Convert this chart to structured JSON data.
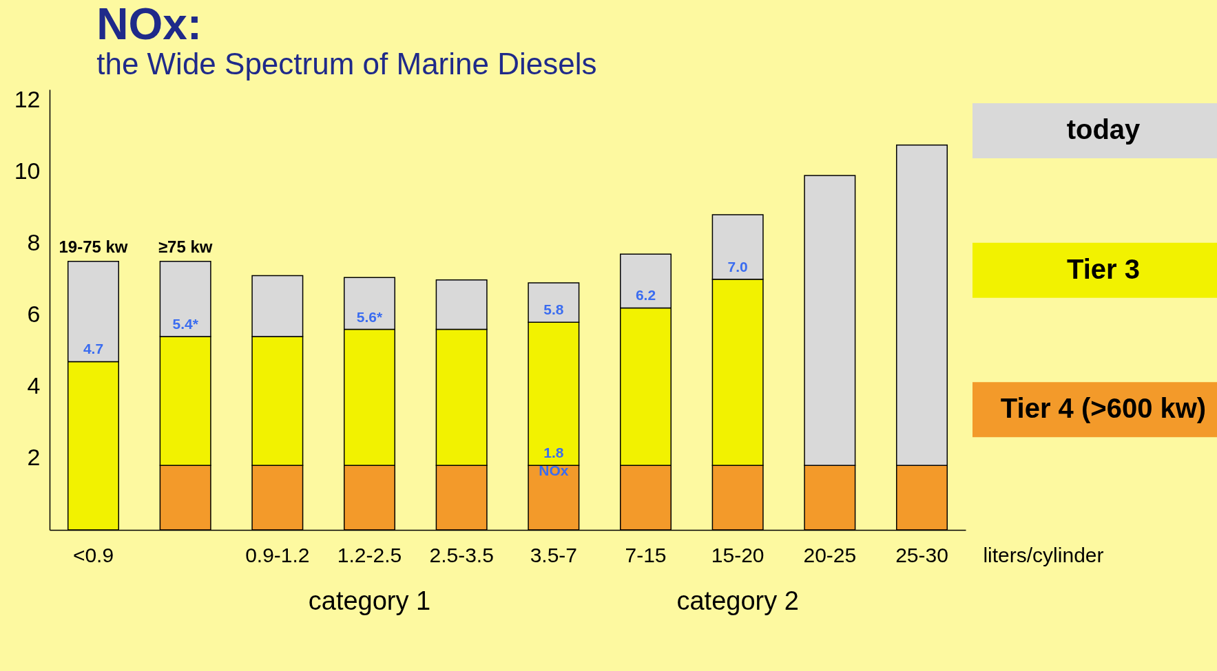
{
  "chart_data": {
    "type": "bar",
    "title": "NOx:",
    "subtitle": "the Wide Spectrum of Marine Diesels",
    "xlabel": "liters/cylinder",
    "categories": [
      "<0.9",
      null,
      "0.9-1.2",
      "1.2-2.5",
      "2.5-3.5",
      "3.5-7",
      "7-15",
      "15-20",
      "20-25",
      "25-30"
    ],
    "stacked": true,
    "series": [
      {
        "name": "Tier 4 (>600 kw)",
        "color": "#f39a2a",
        "values": [
          null,
          1.8,
          1.8,
          1.8,
          1.8,
          1.8,
          1.8,
          1.8,
          1.8,
          1.8
        ]
      },
      {
        "name": "Tier 3",
        "color": "#f2f200",
        "values": [
          4.7,
          3.6,
          3.6,
          3.8,
          3.8,
          4.0,
          4.4,
          5.2,
          null,
          null
        ]
      },
      {
        "name": "today",
        "color": "#d9d9d9",
        "values": [
          2.8,
          2.1,
          1.7,
          1.45,
          1.38,
          1.1,
          1.5,
          1.8,
          8.1,
          8.95
        ]
      }
    ],
    "ylim": [
      0,
      12.3
    ],
    "yticks": [
      2,
      4,
      6,
      8,
      10,
      12
    ],
    "legend": "right",
    "annotations": [
      "19-75 kw",
      "≥75 kw",
      "5.4*",
      "category 1",
      "category 2",
      {
        "text": "4.7",
        "x": "<0.9",
        "y": 4.7
      },
      {
        "text": "5.6*",
        "x": "1.2-2.5",
        "y": 5.6
      },
      {
        "text": "5.8",
        "x": "3.5-7",
        "y": 5.8
      },
      {
        "text": "6.2",
        "x": "7-15",
        "y": 6.2
      },
      {
        "text": "7.0",
        "x": "15-20",
        "y": 7.0
      },
      {
        "text": "1.8\nNOx",
        "x": "3.5-7",
        "y": 1.8
      }
    ]
  }
}
